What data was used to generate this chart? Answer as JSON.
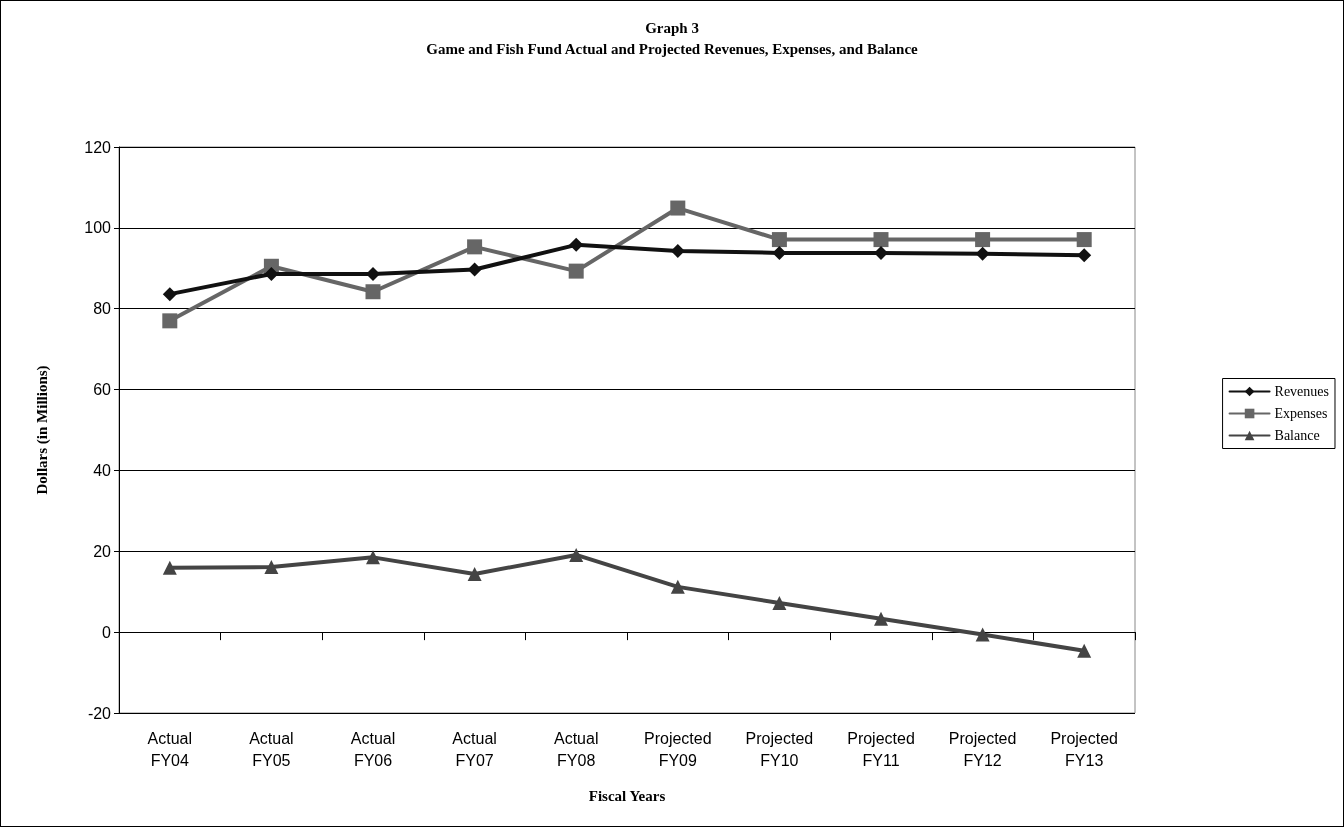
{
  "chart_data": {
    "type": "line",
    "title": "Graph 3",
    "subtitle": "Game and Fish Fund Actual and Projected Revenues, Expenses, and Balance",
    "xlabel": "Fiscal Years",
    "ylabel": "Dollars (in Millions)",
    "categories": [
      "Actual\nFY04",
      "Actual\nFY05",
      "Actual\nFY06",
      "Actual\nFY07",
      "Actual\nFY08",
      "Projected\nFY09",
      "Projected\nFY10",
      "Projected\nFY11",
      "Projected\nFY12",
      "Projected\nFY13"
    ],
    "series": [
      {
        "name": "Revenues",
        "color": "#111111",
        "marker": "diamond",
        "values": [
          83.6,
          88.6,
          88.6,
          89.7,
          95.8,
          94.3,
          93.8,
          93.8,
          93.6,
          93.2
        ]
      },
      {
        "name": "Expenses",
        "color": "#666666",
        "marker": "square",
        "values": [
          77,
          90.5,
          84.2,
          95.3,
          89.3,
          104.9,
          97.1,
          97.1,
          97.1,
          97.1
        ]
      },
      {
        "name": "Balance",
        "color": "#444444",
        "marker": "triangle",
        "values": [
          15.9,
          16.1,
          18.5,
          14.4,
          19.1,
          11.2,
          7.2,
          3.3,
          -0.6,
          -4.6
        ]
      }
    ],
    "ylim": [
      -20,
      120
    ],
    "yticks": [
      -20,
      0,
      20,
      40,
      60,
      80,
      100,
      120
    ],
    "grid": "y",
    "legend": "right",
    "line_style": "solid"
  }
}
